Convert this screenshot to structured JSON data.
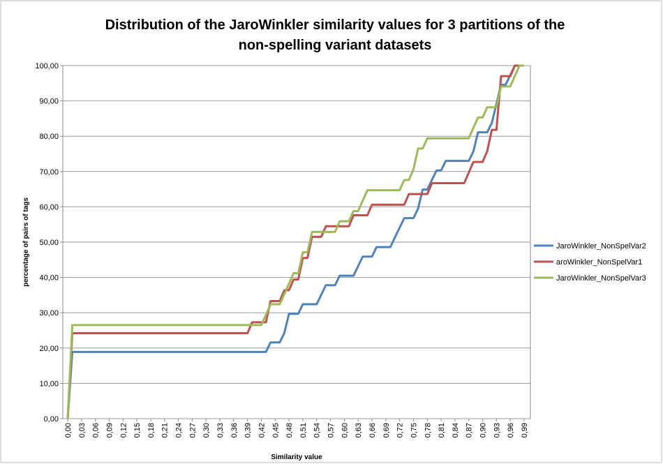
{
  "chart_data": {
    "type": "line",
    "title": "Distribution of the JaroWinkler similarity values for 3 partitions of  the non-spelling variant datasets",
    "x_label": "Similarity value",
    "y_label": "percentage of pairs of tags",
    "categories": [
      "0,00",
      null,
      null,
      "0,03",
      null,
      null,
      "0,06",
      null,
      null,
      "0,09",
      null,
      null,
      "0,12",
      null,
      null,
      "0,15",
      null,
      null,
      "0,18",
      null,
      null,
      "0,21",
      null,
      null,
      "0,24",
      null,
      null,
      "0,27",
      null,
      null,
      "0,30",
      null,
      null,
      "0,33",
      null,
      null,
      "0,36",
      null,
      null,
      "0,39",
      null,
      null,
      "0,42",
      null,
      null,
      "0,45",
      null,
      null,
      "0,48",
      null,
      null,
      "0,51",
      null,
      null,
      "0,54",
      null,
      null,
      "0,57",
      null,
      null,
      "0,60",
      null,
      null,
      "0,63",
      null,
      null,
      "0,66",
      null,
      null,
      "0,69",
      null,
      null,
      "0,72",
      null,
      null,
      "0,75",
      null,
      null,
      "0,78",
      null,
      null,
      "0,81",
      null,
      null,
      "0,84",
      null,
      null,
      "0,87",
      null,
      null,
      "0,90",
      null,
      null,
      "0,93",
      null,
      null,
      "0,96",
      null,
      null,
      "0,99"
    ],
    "series": [
      {
        "name": "JaroWinkler_NonSpelVar2",
        "color": "#4f81bd",
        "values": [
          0,
          18.9,
          18.9,
          18.9,
          18.9,
          18.9,
          18.9,
          18.9,
          18.9,
          18.9,
          18.9,
          18.9,
          18.9,
          18.9,
          18.9,
          18.9,
          18.9,
          18.9,
          18.9,
          18.9,
          18.9,
          18.9,
          18.9,
          18.9,
          18.9,
          18.9,
          18.9,
          18.9,
          18.9,
          18.9,
          18.9,
          18.9,
          18.9,
          18.9,
          18.9,
          18.9,
          18.9,
          18.9,
          18.9,
          18.9,
          18.9,
          18.9,
          18.9,
          18.9,
          21.6,
          21.6,
          21.6,
          24.3,
          29.7,
          29.7,
          29.7,
          32.4,
          32.4,
          32.4,
          32.4,
          35.1,
          37.8,
          37.8,
          37.8,
          40.5,
          40.5,
          40.5,
          40.5,
          43.2,
          45.9,
          45.9,
          45.9,
          48.6,
          48.6,
          48.6,
          48.6,
          51.4,
          54.1,
          56.8,
          56.8,
          56.8,
          59.5,
          64.9,
          64.9,
          67.6,
          70.3,
          70.3,
          73,
          73,
          73,
          73,
          73,
          73,
          75.7,
          81.1,
          81.1,
          81.1,
          83.8,
          89.2,
          94.6,
          94.6,
          97.3,
          100,
          100,
          100
        ]
      },
      {
        "name": "aroWinkler_NonSpelVar1",
        "color": "#c0504d",
        "values": [
          0,
          24.2,
          24.2,
          24.2,
          24.2,
          24.2,
          24.2,
          24.2,
          24.2,
          24.2,
          24.2,
          24.2,
          24.2,
          24.2,
          24.2,
          24.2,
          24.2,
          24.2,
          24.2,
          24.2,
          24.2,
          24.2,
          24.2,
          24.2,
          24.2,
          24.2,
          24.2,
          24.2,
          24.2,
          24.2,
          24.2,
          24.2,
          24.2,
          24.2,
          24.2,
          24.2,
          24.2,
          24.2,
          24.2,
          24.2,
          27.3,
          27.3,
          27.3,
          27.3,
          33.3,
          33.3,
          33.3,
          36.4,
          36.4,
          39.4,
          39.4,
          45.5,
          45.5,
          51.5,
          51.5,
          51.5,
          54.5,
          54.5,
          54.5,
          54.5,
          54.5,
          54.5,
          57.6,
          57.6,
          57.6,
          57.6,
          60.6,
          60.6,
          60.6,
          60.6,
          60.6,
          60.6,
          60.6,
          60.6,
          63.6,
          63.6,
          63.6,
          63.6,
          63.6,
          66.7,
          66.7,
          66.7,
          66.7,
          66.7,
          66.7,
          66.7,
          66.7,
          69.7,
          72.7,
          72.7,
          72.7,
          75.8,
          81.8,
          81.8,
          97,
          97,
          97,
          100,
          100,
          100
        ]
      },
      {
        "name": "JaroWinkler_NonSpelVar3",
        "color": "#9bbb59",
        "values": [
          0,
          26.5,
          26.5,
          26.5,
          26.5,
          26.5,
          26.5,
          26.5,
          26.5,
          26.5,
          26.5,
          26.5,
          26.5,
          26.5,
          26.5,
          26.5,
          26.5,
          26.5,
          26.5,
          26.5,
          26.5,
          26.5,
          26.5,
          26.5,
          26.5,
          26.5,
          26.5,
          26.5,
          26.5,
          26.5,
          26.5,
          26.5,
          26.5,
          26.5,
          26.5,
          26.5,
          26.5,
          26.5,
          26.5,
          26.5,
          26.5,
          26.5,
          26.5,
          29.4,
          32.4,
          32.4,
          32.4,
          35.3,
          38.2,
          41.2,
          41.2,
          47.1,
          47.1,
          52.9,
          52.9,
          52.9,
          52.9,
          52.9,
          52.9,
          55.9,
          55.9,
          55.9,
          58.8,
          58.8,
          61.8,
          64.7,
          64.7,
          64.7,
          64.7,
          64.7,
          64.7,
          64.7,
          64.7,
          67.6,
          67.6,
          70.6,
          76.5,
          76.5,
          79.4,
          79.4,
          79.4,
          79.4,
          79.4,
          79.4,
          79.4,
          79.4,
          79.4,
          79.4,
          82.4,
          85.3,
          85.3,
          88.2,
          88.2,
          88.2,
          94.1,
          94.1,
          94.1,
          97.1,
          100,
          100
        ]
      }
    ],
    "ylim": [
      0,
      100
    ],
    "yticks": [
      {
        "value": 0,
        "label": "0,00"
      },
      {
        "value": 10,
        "label": "10,00"
      },
      {
        "value": 20,
        "label": "20,00"
      },
      {
        "value": 30,
        "label": "30,00"
      },
      {
        "value": 40,
        "label": "40,00"
      },
      {
        "value": 50,
        "label": "50,00"
      },
      {
        "value": 60,
        "label": "60,00"
      },
      {
        "value": 70,
        "label": "70,00"
      },
      {
        "value": 80,
        "label": "80,00"
      },
      {
        "value": 90,
        "label": "90,00"
      },
      {
        "value": 100,
        "label": "100,00"
      }
    ],
    "grid": true,
    "legend": "right"
  }
}
